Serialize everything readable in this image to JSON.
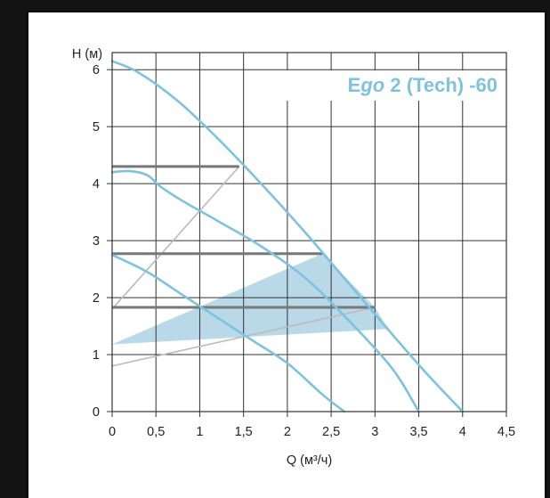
{
  "chart_data": {
    "type": "line",
    "title": "Ego 2 (Tech) -60",
    "title_prefix": "E",
    "title_italic": "go",
    "title_suffix": " 2 (Tech) -60",
    "xlabel": "Q (м³/ч)",
    "ylabel": "H (м)",
    "xlim": [
      0,
      4.5
    ],
    "ylim": [
      0,
      6.3
    ],
    "x_ticks": [
      0,
      0.5,
      1,
      1.5,
      2,
      2.5,
      3,
      3.5,
      4,
      4.5
    ],
    "x_tick_labels": [
      "0",
      "0,5",
      "1",
      "1,5",
      "2",
      "2,5",
      "3",
      "3,5",
      "4",
      "4,5"
    ],
    "y_ticks": [
      0,
      1,
      2,
      3,
      4,
      5,
      6
    ],
    "y_tick_labels": [
      "0",
      "1",
      "2",
      "3",
      "4",
      "5",
      "6"
    ],
    "grid": true,
    "colors": {
      "curve": "#7ec2de",
      "setting_line": "#777777",
      "guide_line": "#bbbbbb",
      "shaded_area": "#b9d8e8",
      "axis": "#333333",
      "grid": "#333333",
      "title": "#7ec2de"
    },
    "curves": [
      {
        "x": [
          0,
          0.3,
          0.75,
          1.2,
          1.7,
          2.2,
          2.7,
          3.2,
          3.6,
          4.0
        ],
        "y": [
          6.15,
          5.95,
          5.45,
          4.8,
          4.0,
          3.15,
          2.25,
          1.35,
          0.65,
          0
        ]
      },
      {
        "x": [
          0,
          0.2,
          0.4,
          0.55,
          0.8,
          1.2,
          1.7,
          2.2,
          2.7,
          3.2,
          3.5
        ],
        "y": [
          4.2,
          4.22,
          4.15,
          3.95,
          3.7,
          3.35,
          2.9,
          2.35,
          1.6,
          0.75,
          0
        ]
      },
      {
        "x": [
          0,
          0.4,
          0.8,
          1.2,
          1.6,
          2.0,
          2.4,
          2.65
        ],
        "y": [
          2.75,
          2.45,
          2.05,
          1.65,
          1.25,
          0.85,
          0.3,
          0
        ]
      }
    ],
    "settings": [
      {
        "y": 4.3,
        "x_end": 1.45
      },
      {
        "y": 2.77,
        "x_end": 2.4
      },
      {
        "y": 1.83,
        "x_end": 3.0
      }
    ],
    "guides": [
      {
        "x": [
          0,
          1.45
        ],
        "y": [
          1.8,
          4.3
        ]
      },
      {
        "x": [
          0,
          3.0
        ],
        "y": [
          0.8,
          1.83
        ]
      }
    ],
    "area": {
      "x": [
        0,
        2.4,
        3.0,
        3.15
      ],
      "y": [
        1.18,
        2.77,
        1.83,
        1.45
      ]
    }
  }
}
